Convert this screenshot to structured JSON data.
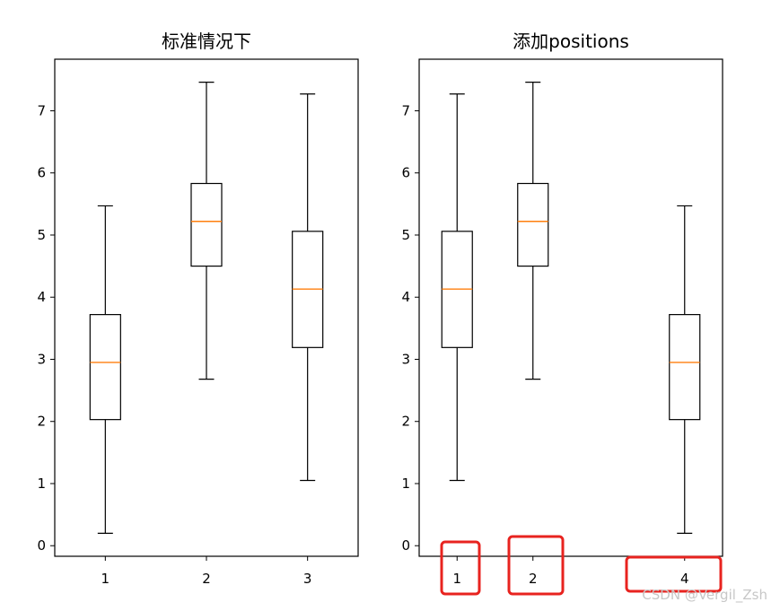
{
  "chart_data": [
    {
      "type": "boxplot",
      "title": "标准情况下",
      "xlabel": "",
      "ylabel": "",
      "ylim": [
        -0.17,
        7.83
      ],
      "yticks": [
        "0",
        "1",
        "2",
        "3",
        "4",
        "5",
        "6",
        "7"
      ],
      "xlim": [
        0.5,
        3.5
      ],
      "xtick_labels": [
        "1",
        "2",
        "3"
      ],
      "series": [
        {
          "label": "1",
          "position": 1,
          "whisker_low": 0.2,
          "q1": 2.03,
          "median": 2.95,
          "q3": 3.72,
          "whisker_high": 5.47
        },
        {
          "label": "2",
          "position": 2,
          "whisker_low": 2.68,
          "q1": 4.5,
          "median": 5.22,
          "q3": 5.83,
          "whisker_high": 7.46
        },
        {
          "label": "3",
          "position": 3,
          "whisker_low": 1.05,
          "q1": 3.19,
          "median": 4.13,
          "q3": 5.06,
          "whisker_high": 7.27
        }
      ],
      "colors": {
        "median": "#ff7f0e",
        "box": "#000000"
      }
    },
    {
      "type": "boxplot",
      "title": "添加positions",
      "xlabel": "",
      "ylabel": "",
      "ylim": [
        -0.17,
        7.83
      ],
      "yticks": [
        "0",
        "1",
        "2",
        "3",
        "4",
        "5",
        "6",
        "7"
      ],
      "xlim": [
        0.5,
        4.5
      ],
      "xtick_labels": [
        "1",
        "2",
        "4"
      ],
      "series": [
        {
          "label": "1",
          "position": 1,
          "whisker_low": 1.05,
          "q1": 3.19,
          "median": 4.13,
          "q3": 5.06,
          "whisker_high": 7.27
        },
        {
          "label": "2",
          "position": 2,
          "whisker_low": 2.68,
          "q1": 4.5,
          "median": 5.22,
          "q3": 5.83,
          "whisker_high": 7.46
        },
        {
          "label": "4",
          "position": 4,
          "whisker_low": 0.2,
          "q1": 2.03,
          "median": 2.95,
          "q3": 3.72,
          "whisker_high": 5.47
        }
      ],
      "highlighted_ticks": [
        "1",
        "2",
        "4"
      ],
      "colors": {
        "median": "#ff7f0e",
        "box": "#000000",
        "highlight": "#e8231f"
      }
    }
  ],
  "watermark": "CSDN @Vergil_Zsh"
}
